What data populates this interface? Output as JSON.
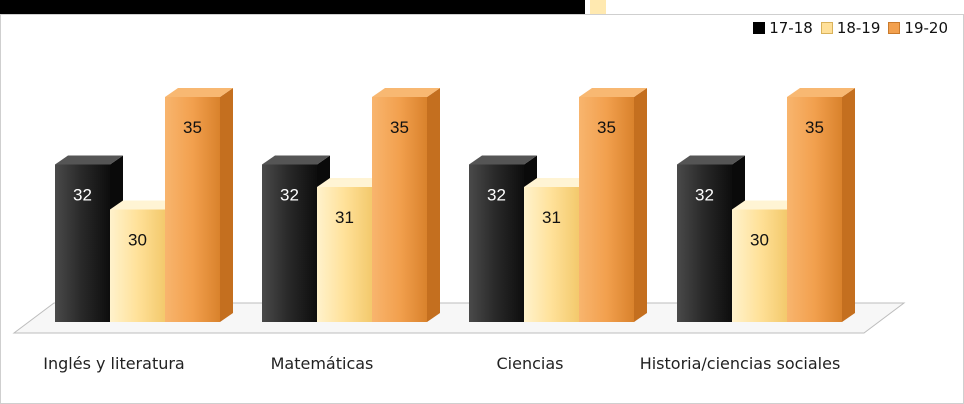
{
  "chart_data": {
    "type": "bar",
    "categories": [
      "Inglés y literatura",
      "Matemáticas",
      "Ciencias",
      "Historia/ciencias sociales"
    ],
    "series": [
      {
        "name": "17-18",
        "values": [
          32,
          32,
          32,
          32
        ],
        "color": "#262626"
      },
      {
        "name": "18-19",
        "values": [
          30,
          31,
          31,
          30
        ],
        "color": "#ffe099"
      },
      {
        "name": "19-20",
        "values": [
          35,
          35,
          35,
          35
        ],
        "color": "#f2a04e"
      }
    ],
    "legend_position": "top-right",
    "grid": false,
    "three_d": true,
    "ylim": [
      25,
      35
    ]
  },
  "page": {
    "top_bar_color": "#000000",
    "top_accent_color": "#ffe9b0"
  }
}
